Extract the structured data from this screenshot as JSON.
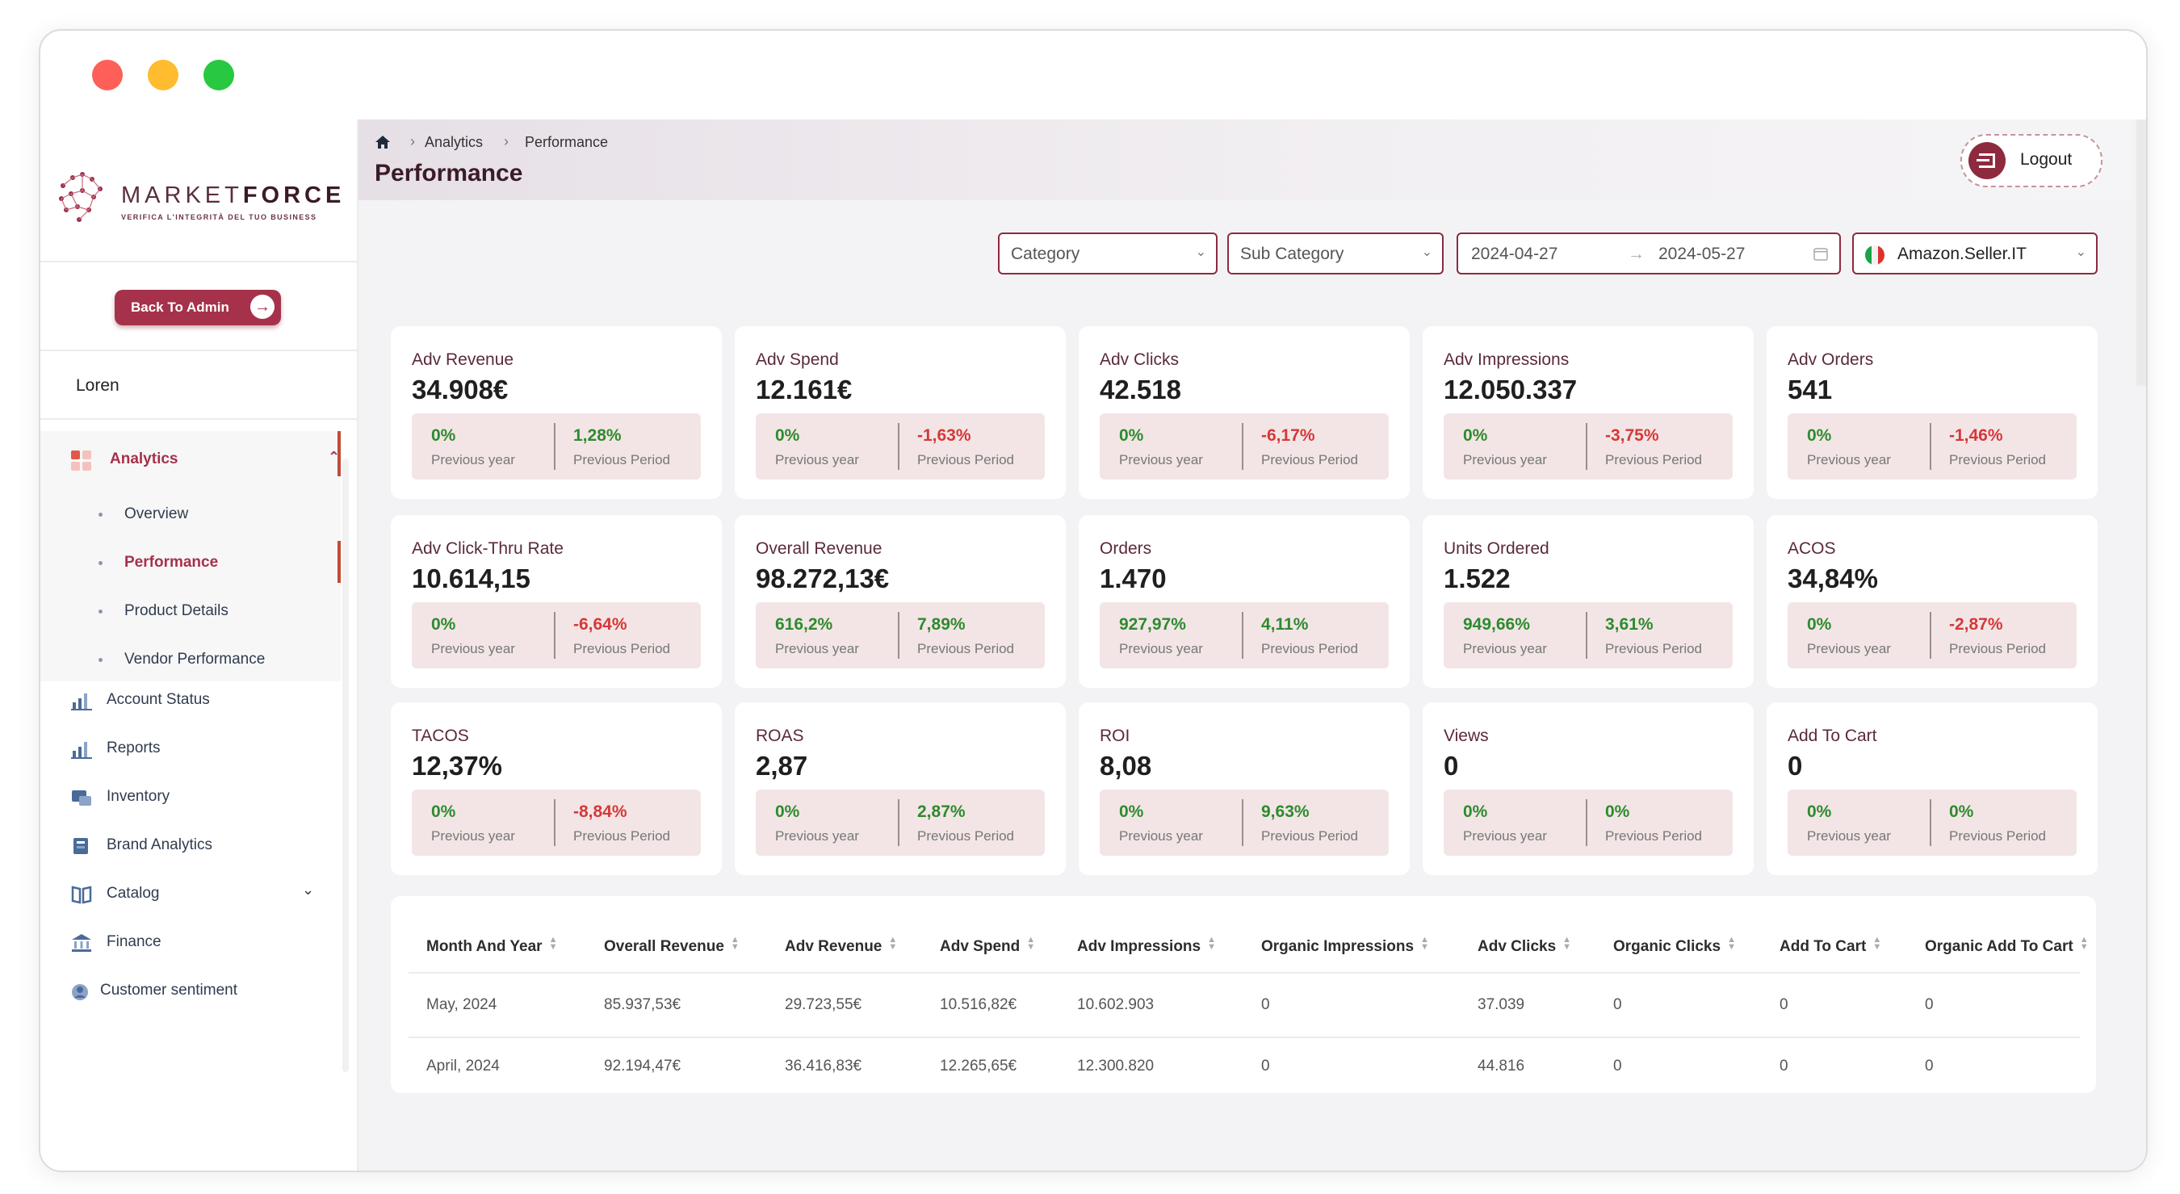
{
  "app": {
    "logo_name_light": "MARKET",
    "logo_name_bold": "FORCE",
    "logo_tagline": "VERIFICA L'INTEGRITÀ DEL TUO BUSINESS",
    "back_button": "Back To Admin",
    "user_name": "Loren",
    "logout": "Logout"
  },
  "sidebar": {
    "analytics": {
      "label": "Analytics",
      "children": [
        "Overview",
        "Performance",
        "Product Details",
        "Vendor Performance"
      ],
      "active": "Performance"
    },
    "items": [
      "Account Status",
      "Reports",
      "Inventory",
      "Brand Analytics",
      "Catalog",
      "Finance",
      "Customer sentiment"
    ]
  },
  "breadcrumb": [
    "Analytics",
    "Performance"
  ],
  "page_title": "Performance",
  "filters": {
    "category": "Category",
    "subcategory": "Sub Category",
    "date_from": "2024-04-27",
    "date_to": "2024-05-27",
    "marketplace": "Amazon.Seller.IT"
  },
  "labels": {
    "previous_year": "Previous year",
    "previous_period": "Previous Period"
  },
  "kpis": [
    {
      "title": "Adv Revenue",
      "value": "34.908€",
      "prev_year": "0%",
      "prev_period": "1,28%"
    },
    {
      "title": "Adv Spend",
      "value": "12.161€",
      "prev_year": "0%",
      "prev_period": "-1,63%"
    },
    {
      "title": "Adv Clicks",
      "value": "42.518",
      "prev_year": "0%",
      "prev_period": "-6,17%"
    },
    {
      "title": "Adv Impressions",
      "value": "12.050.337",
      "prev_year": "0%",
      "prev_period": "-3,75%"
    },
    {
      "title": "Adv Orders",
      "value": "541",
      "prev_year": "0%",
      "prev_period": "-1,46%"
    },
    {
      "title": "Adv Click-Thru Rate",
      "value": "10.614,15",
      "prev_year": "0%",
      "prev_period": "-6,64%"
    },
    {
      "title": "Overall Revenue",
      "value": "98.272,13€",
      "prev_year": "616,2%",
      "prev_period": "7,89%"
    },
    {
      "title": "Orders",
      "value": "1.470",
      "prev_year": "927,97%",
      "prev_period": "4,11%"
    },
    {
      "title": "Units Ordered",
      "value": "1.522",
      "prev_year": "949,66%",
      "prev_period": "3,61%"
    },
    {
      "title": "ACOS",
      "value": "34,84%",
      "prev_year": "0%",
      "prev_period": "-2,87%"
    },
    {
      "title": "TACOS",
      "value": "12,37%",
      "prev_year": "0%",
      "prev_period": "-8,84%"
    },
    {
      "title": "ROAS",
      "value": "2,87",
      "prev_year": "0%",
      "prev_period": "2,87%"
    },
    {
      "title": "ROI",
      "value": "8,08",
      "prev_year": "0%",
      "prev_period": "9,63%"
    },
    {
      "title": "Views",
      "value": "0",
      "prev_year": "0%",
      "prev_period": "0%"
    },
    {
      "title": "Add To Cart",
      "value": "0",
      "prev_year": "0%",
      "prev_period": "0%"
    }
  ],
  "table": {
    "columns": [
      "Month And Year",
      "Overall Revenue",
      "Adv Revenue",
      "Adv Spend",
      "Adv Impressions",
      "Organic Impressions",
      "Adv Clicks",
      "Organic Clicks",
      "Add To Cart",
      "Organic Add To Cart"
    ],
    "rows": [
      [
        "May, 2024",
        "85.937,53€",
        "29.723,55€",
        "10.516,82€",
        "10.602.903",
        "0",
        "37.039",
        "0",
        "0",
        "0"
      ],
      [
        "April, 2024",
        "92.194,47€",
        "36.416,83€",
        "12.265,65€",
        "12.300.820",
        "0",
        "44.816",
        "0",
        "0",
        "0"
      ]
    ]
  },
  "colors": {
    "brand": "#a5324a",
    "positive": "#2e8b2e",
    "negative": "#d63838"
  }
}
